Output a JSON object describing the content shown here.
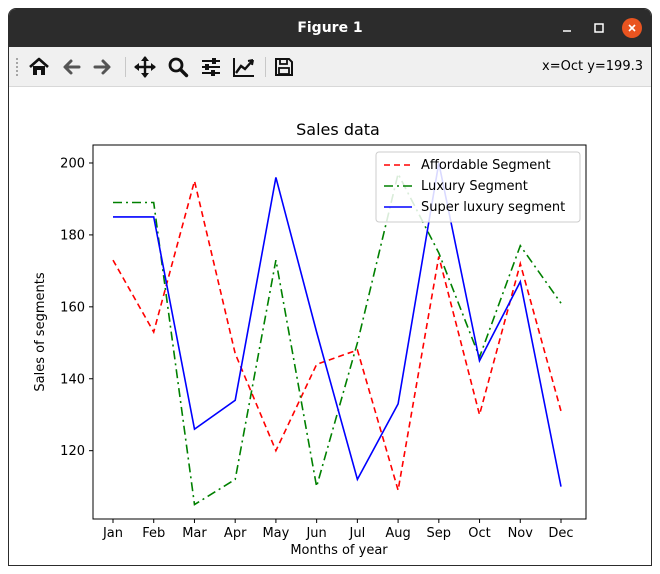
{
  "window": {
    "title": "Figure 1"
  },
  "toolbar": {
    "buttons": [
      {
        "name": "home-button",
        "icon": "home-icon"
      },
      {
        "name": "back-button",
        "icon": "arrow-left-icon"
      },
      {
        "name": "forward-button",
        "icon": "arrow-right-icon"
      },
      {
        "name": "pan-button",
        "icon": "move-icon"
      },
      {
        "name": "zoom-button",
        "icon": "magnifier-icon"
      },
      {
        "name": "configure-subplots-button",
        "icon": "sliders-icon"
      },
      {
        "name": "edit-axis-button",
        "icon": "line-chart-icon"
      },
      {
        "name": "save-button",
        "icon": "floppy-disk-icon"
      }
    ],
    "coords": "x=Oct y=199.3"
  },
  "colors": {
    "titlebar": "#2c2c2c",
    "close": "#e95420",
    "affordable": "#ff0000",
    "luxury": "#008000",
    "super": "#0000ff"
  },
  "chart_data": {
    "type": "line",
    "title": "Sales data",
    "xlabel": "Months of year",
    "ylabel": "Sales of segments",
    "categories": [
      "Jan",
      "Feb",
      "Mar",
      "Apr",
      "May",
      "Jun",
      "Jul",
      "Aug",
      "Sep",
      "Oct",
      "Nov",
      "Dec"
    ],
    "ylim": [
      101,
      205
    ],
    "yticks": [
      120,
      140,
      160,
      180,
      200
    ],
    "grid": false,
    "legend_position": "upper right",
    "series": [
      {
        "name": "Affordable Segment",
        "style": "dashed",
        "color": "#ff0000",
        "values": [
          173,
          153,
          195,
          147,
          120,
          144,
          148,
          109,
          174,
          130,
          172,
          131
        ]
      },
      {
        "name": "Luxury Segment",
        "style": "dashdot",
        "color": "#008000",
        "values": [
          189,
          189,
          105,
          112,
          173,
          110,
          150,
          197,
          175,
          146,
          177,
          161
        ]
      },
      {
        "name": "Super luxury segment",
        "style": "solid",
        "color": "#0000ff",
        "values": [
          185,
          185,
          126,
          134,
          196,
          153,
          112,
          133,
          200,
          145,
          167,
          110
        ]
      }
    ]
  }
}
